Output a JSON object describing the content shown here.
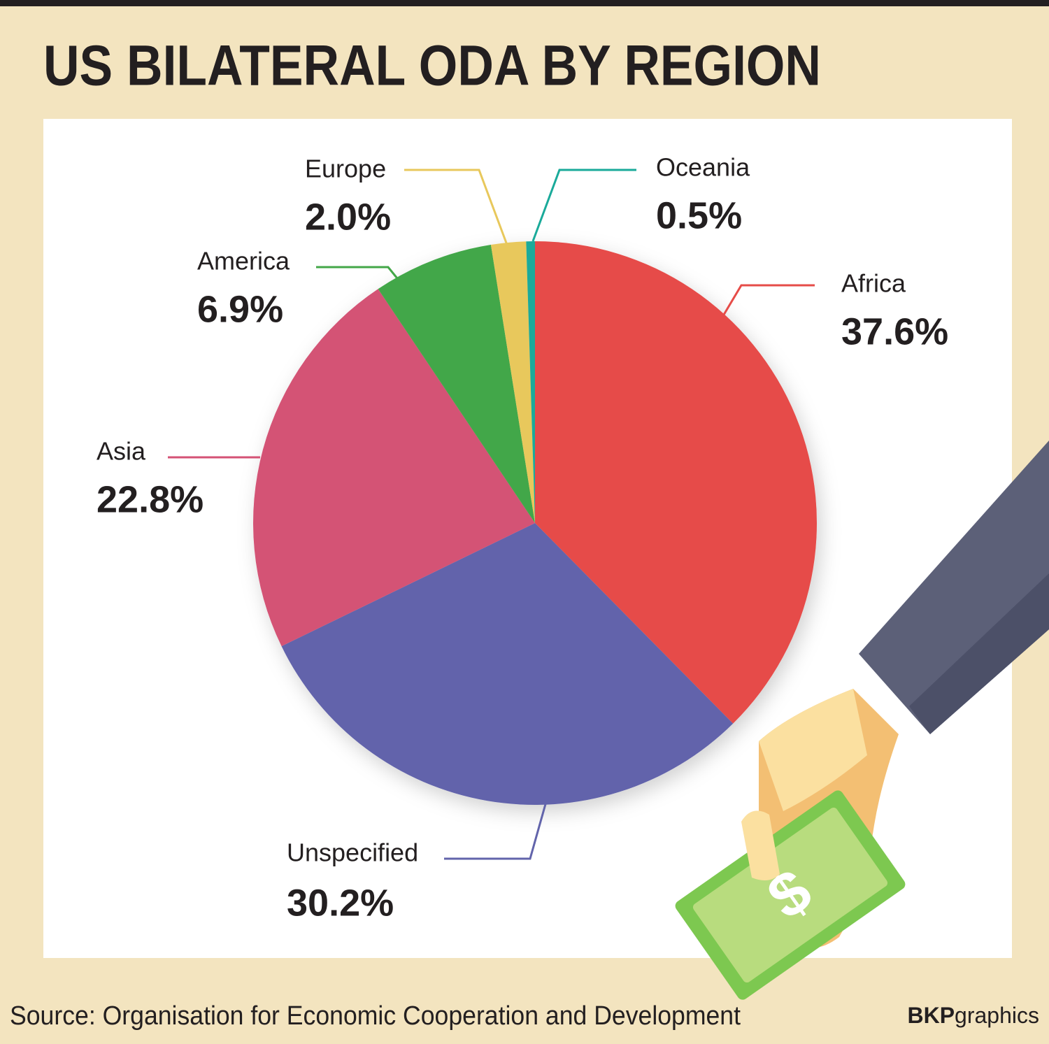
{
  "chart_data": {
    "type": "pie",
    "title": "US BILATERAL ODA BY REGION",
    "categories": [
      "Africa",
      "Unspecified",
      "Asia",
      "America",
      "Europe",
      "Oceania"
    ],
    "values": [
      37.6,
      30.2,
      22.8,
      6.9,
      2.0,
      0.5
    ],
    "value_labels": [
      "37.6%",
      "30.2%",
      "22.8%",
      "6.9%",
      "2.0%",
      "0.5%"
    ],
    "colors": [
      "#e64c48",
      "#6264ab",
      "#d45275",
      "#43a748",
      "#e8c85c",
      "#1aaa9a"
    ],
    "source": "Source: Organisation for Economic Cooperation and Development",
    "credit": {
      "bold": "BKP",
      "regular": "graphics"
    }
  }
}
